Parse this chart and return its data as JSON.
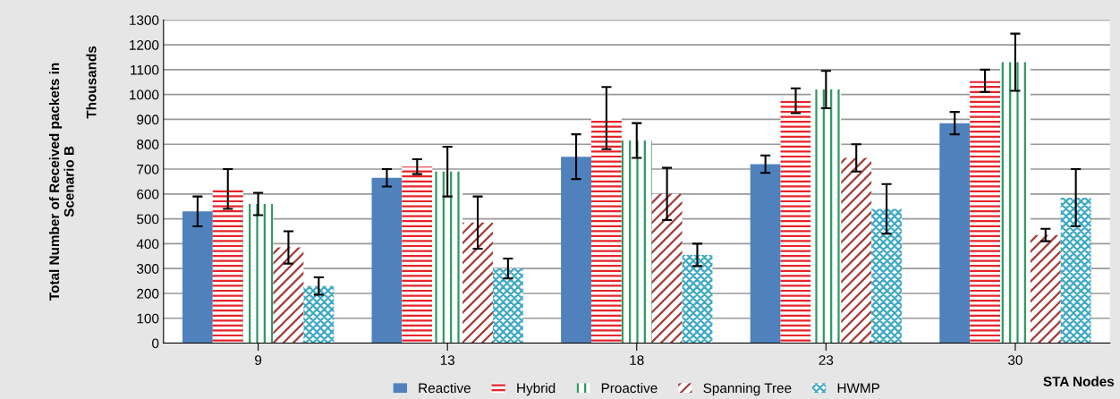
{
  "chart_data": {
    "type": "bar",
    "categories": [
      "9",
      "13",
      "18",
      "23",
      "30"
    ],
    "xlabel": "STA Nodes",
    "ylabel": "Total Number of Received packets in\nScenario B",
    "annotations": [
      "Thousands"
    ],
    "series": [
      {
        "name": "Reactive",
        "color": "#4f81bd",
        "values": [
          530,
          665,
          750,
          720,
          885
        ],
        "errors": [
          60,
          35,
          90,
          35,
          45
        ]
      },
      {
        "name": "Hybrid",
        "color": "#e8232a",
        "values": [
          620,
          710,
          905,
          975,
          1055
        ],
        "errors": [
          80,
          30,
          125,
          50,
          45
        ]
      },
      {
        "name": "Proactive",
        "color": "#2e9960",
        "values": [
          560,
          690,
          815,
          1020,
          1130
        ],
        "errors": [
          45,
          100,
          70,
          75,
          115
        ]
      },
      {
        "name": "Spanning Tree",
        "color": "#a33a36",
        "values": [
          385,
          485,
          600,
          745,
          435
        ],
        "errors": [
          65,
          105,
          105,
          55,
          25
        ]
      },
      {
        "name": "HWMP",
        "color": "#3fa9c4",
        "values": [
          230,
          300,
          355,
          540,
          585
        ],
        "errors": [
          35,
          40,
          45,
          100,
          115
        ]
      }
    ],
    "ylim": [
      0,
      1300
    ],
    "yticks": [
      0,
      100,
      200,
      300,
      400,
      500,
      600,
      700,
      800,
      900,
      1000,
      1100,
      1200,
      1300
    ],
    "grid": "y",
    "legend": "bottom"
  }
}
